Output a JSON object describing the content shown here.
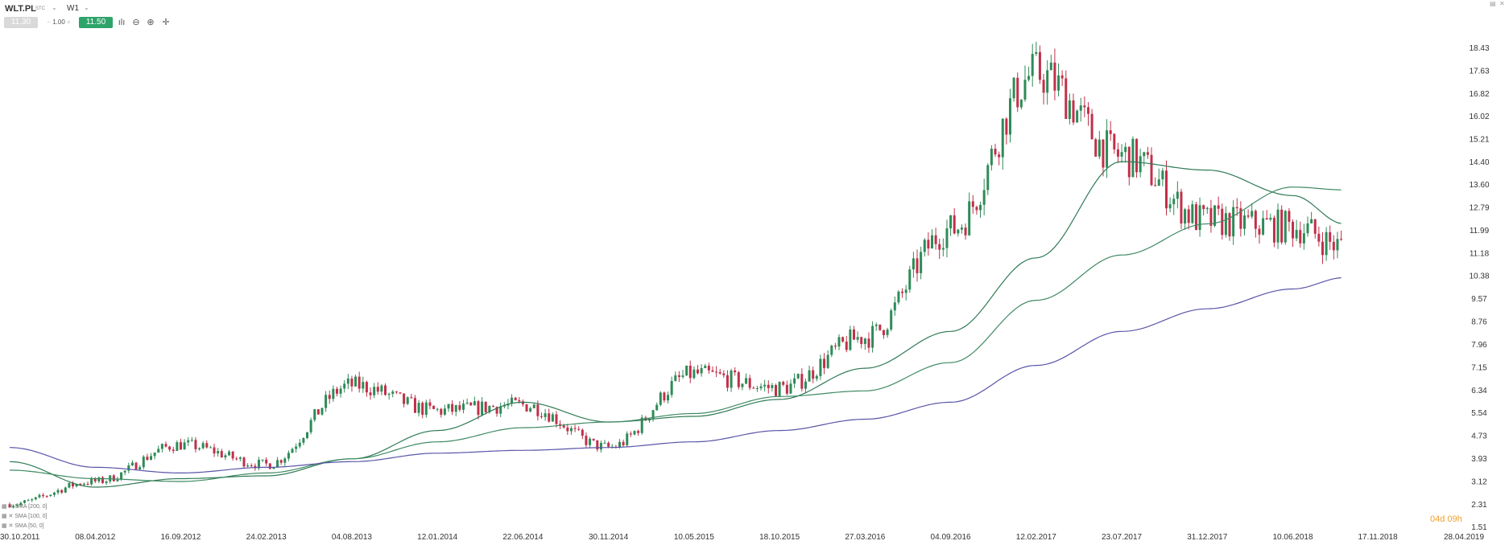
{
  "toolbar": {
    "symbol": "WLT.PL",
    "symbol_sub": "STC",
    "timeframe": "W1",
    "bid": "11.30",
    "quantity": "1.00",
    "ask": "11.50",
    "minus": "−",
    "plus": "+"
  },
  "indicators": [
    "SMA [200, 0]",
    "SMA [100, 0]",
    "SMA [50, 0]"
  ],
  "countdown": "04d 09h",
  "colors": {
    "up": "#2e8b57",
    "down": "#c0304a",
    "sma50": "#2f7a55",
    "sma100": "#3f8a63",
    "sma200": "#5a55a8"
  },
  "chart_data": {
    "type": "candlestick",
    "ylim": [
      1.51,
      19.0
    ],
    "y_ticks": [
      "18.43",
      "17.63",
      "16.82",
      "16.02",
      "15.21",
      "14.40",
      "13.60",
      "12.79",
      "11.99",
      "11.18",
      "10.38",
      "9.57",
      "8.76",
      "7.96",
      "7.15",
      "6.34",
      "5.54",
      "4.73",
      "3.93",
      "3.12",
      "2.31",
      "1.51"
    ],
    "x_ticks": [
      "30.10.2011",
      "08.04.2012",
      "16.09.2012",
      "24.02.2013",
      "04.08.2013",
      "12.01.2014",
      "22.06.2014",
      "30.11.2014",
      "10.05.2015",
      "18.10.2015",
      "27.03.2016",
      "04.09.2016",
      "12.02.2017",
      "23.07.2017",
      "31.12.2017",
      "10.06.2018",
      "17.11.2018",
      "28.04.2019"
    ],
    "close_anchors": [
      [
        "30.10.2011",
        2.3
      ],
      [
        "08.04.2012",
        3.1
      ],
      [
        "16.09.2012",
        4.4
      ],
      [
        "24.02.2013",
        3.7
      ],
      [
        "04.08.2013",
        6.5
      ],
      [
        "12.01.2014",
        5.6
      ],
      [
        "22.06.2014",
        5.8
      ],
      [
        "30.11.2014",
        4.3
      ],
      [
        "10.05.2015",
        6.9
      ],
      [
        "18.10.2015",
        6.4
      ],
      [
        "27.03.2016",
        8.2
      ],
      [
        "04.09.2016",
        12.0
      ],
      [
        "12.02.2017",
        17.5
      ],
      [
        "23.07.2017",
        14.6
      ],
      [
        "31.12.2017",
        12.3
      ],
      [
        "10.06.2018",
        12.1
      ],
      [
        "15.09.2018",
        11.4
      ]
    ],
    "series": [
      {
        "name": "SMA [50, 0]",
        "points": [
          [
            "30.10.2011",
            3.8
          ],
          [
            "08.04.2012",
            2.9
          ],
          [
            "16.09.2012",
            3.2
          ],
          [
            "24.02.2013",
            3.3
          ],
          [
            "04.08.2013",
            3.9
          ],
          [
            "12.01.2014",
            4.9
          ],
          [
            "22.06.2014",
            5.9
          ],
          [
            "30.11.2014",
            5.2
          ],
          [
            "10.05.2015",
            5.4
          ],
          [
            "18.10.2015",
            6.0
          ],
          [
            "27.03.2016",
            7.1
          ],
          [
            "04.09.2016",
            8.4
          ],
          [
            "12.02.2017",
            11.0
          ],
          [
            "23.07.2017",
            14.4
          ],
          [
            "31.12.2017",
            14.1
          ],
          [
            "10.06.2018",
            13.2
          ],
          [
            "15.09.2018",
            12.2
          ]
        ]
      },
      {
        "name": "SMA [100, 0]",
        "points": [
          [
            "30.10.2011",
            3.5
          ],
          [
            "08.04.2012",
            3.2
          ],
          [
            "16.09.2012",
            3.1
          ],
          [
            "24.02.2013",
            3.4
          ],
          [
            "04.08.2013",
            3.9
          ],
          [
            "12.01.2014",
            4.5
          ],
          [
            "22.06.2014",
            5.0
          ],
          [
            "30.11.2014",
            5.2
          ],
          [
            "10.05.2015",
            5.5
          ],
          [
            "18.10.2015",
            6.1
          ],
          [
            "27.03.2016",
            6.3
          ],
          [
            "04.09.2016",
            7.3
          ],
          [
            "12.02.2017",
            9.5
          ],
          [
            "23.07.2017",
            11.1
          ],
          [
            "31.12.2017",
            12.2
          ],
          [
            "10.06.2018",
            13.5
          ],
          [
            "15.09.2018",
            13.4
          ]
        ]
      },
      {
        "name": "SMA [200, 0]",
        "points": [
          [
            "30.10.2011",
            4.3
          ],
          [
            "08.04.2012",
            3.6
          ],
          [
            "16.09.2012",
            3.4
          ],
          [
            "24.02.2013",
            3.6
          ],
          [
            "04.08.2013",
            3.8
          ],
          [
            "12.01.2014",
            4.1
          ],
          [
            "22.06.2014",
            4.2
          ],
          [
            "30.11.2014",
            4.3
          ],
          [
            "10.05.2015",
            4.5
          ],
          [
            "18.10.2015",
            4.9
          ],
          [
            "27.03.2016",
            5.3
          ],
          [
            "04.09.2016",
            5.9
          ],
          [
            "12.02.2017",
            7.2
          ],
          [
            "23.07.2017",
            8.4
          ],
          [
            "31.12.2017",
            9.2
          ],
          [
            "10.06.2018",
            9.9
          ],
          [
            "15.09.2018",
            10.3
          ]
        ]
      }
    ]
  }
}
